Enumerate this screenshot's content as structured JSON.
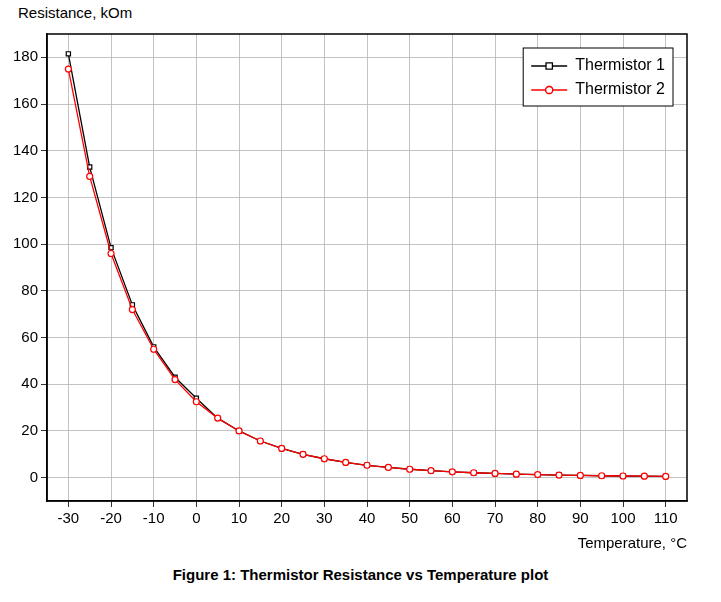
{
  "chart_data": {
    "type": "line",
    "title": "Figure 1: Thermistor Resistance vs Temperature plot",
    "x_label": "Temperature, °C",
    "y_label": "Resistance, kOm",
    "x": [
      -30,
      -25,
      -20,
      -15,
      -10,
      -5,
      0,
      5,
      10,
      15,
      20,
      25,
      30,
      35,
      40,
      45,
      50,
      55,
      60,
      65,
      70,
      75,
      80,
      85,
      90,
      95,
      100,
      105,
      110
    ],
    "series": [
      {
        "name": "Thermistor 1",
        "color": "#000000",
        "marker": "square",
        "values": [
          181.5,
          133,
          98.5,
          74,
          56,
          43,
          34,
          25.5,
          20,
          15.7,
          12.5,
          10,
          8.1,
          6.5,
          5.3,
          4.4,
          3.6,
          3.0,
          2.5,
          2.1,
          1.8,
          1.5,
          1.3,
          1.1,
          0.95,
          0.82,
          0.71,
          0.62,
          0.54
        ]
      },
      {
        "name": "Thermistor 2",
        "color": "#ff0000",
        "marker": "circle",
        "values": [
          175,
          129,
          96,
          72,
          55,
          42,
          32.5,
          25.5,
          20,
          15.7,
          12.5,
          10,
          8.1,
          6.5,
          5.3,
          4.4,
          3.6,
          3.0,
          2.5,
          2.1,
          1.8,
          1.5,
          1.3,
          1.1,
          0.95,
          0.82,
          0.71,
          0.62,
          0.54
        ]
      }
    ],
    "xlim": [
      -35,
      115
    ],
    "xticks": [
      -30,
      -20,
      -10,
      0,
      10,
      20,
      30,
      40,
      50,
      60,
      70,
      80,
      90,
      100,
      110
    ],
    "ylim": [
      -10,
      190
    ],
    "yticks": [
      0,
      20,
      40,
      60,
      80,
      100,
      120,
      140,
      160,
      180
    ],
    "grid": true,
    "legend": "upper right"
  }
}
